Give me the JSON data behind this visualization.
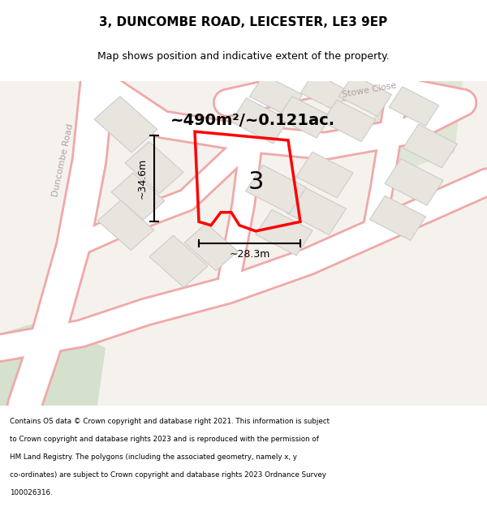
{
  "title": "3, DUNCOMBE ROAD, LEICESTER, LE3 9EP",
  "subtitle": "Map shows position and indicative extent of the property.",
  "area_label": "~490m²/~0.121ac.",
  "property_number": "3",
  "dim_height": "~34.6m",
  "dim_width": "~28.3m",
  "road_color": "#ffffff",
  "road_outline_color": "#f0a8a8",
  "building_fill": "#e8e4de",
  "building_outline": "#cccccc",
  "property_outline": "#ff0000",
  "green_area_color": "#c8dbc0",
  "street_label_color": "#b0a0a0",
  "footer_lines": [
    "Contains OS data © Crown copyright and database right 2021. This information is subject",
    "to Crown copyright and database rights 2023 and is reproduced with the permission of",
    "HM Land Registry. The polygons (including the associated geometry, namely x, y",
    "co-ordinates) are subject to Crown copyright and database rights 2023 Ordnance Survey",
    "100026316."
  ],
  "map_bg": "#f5f2ee"
}
